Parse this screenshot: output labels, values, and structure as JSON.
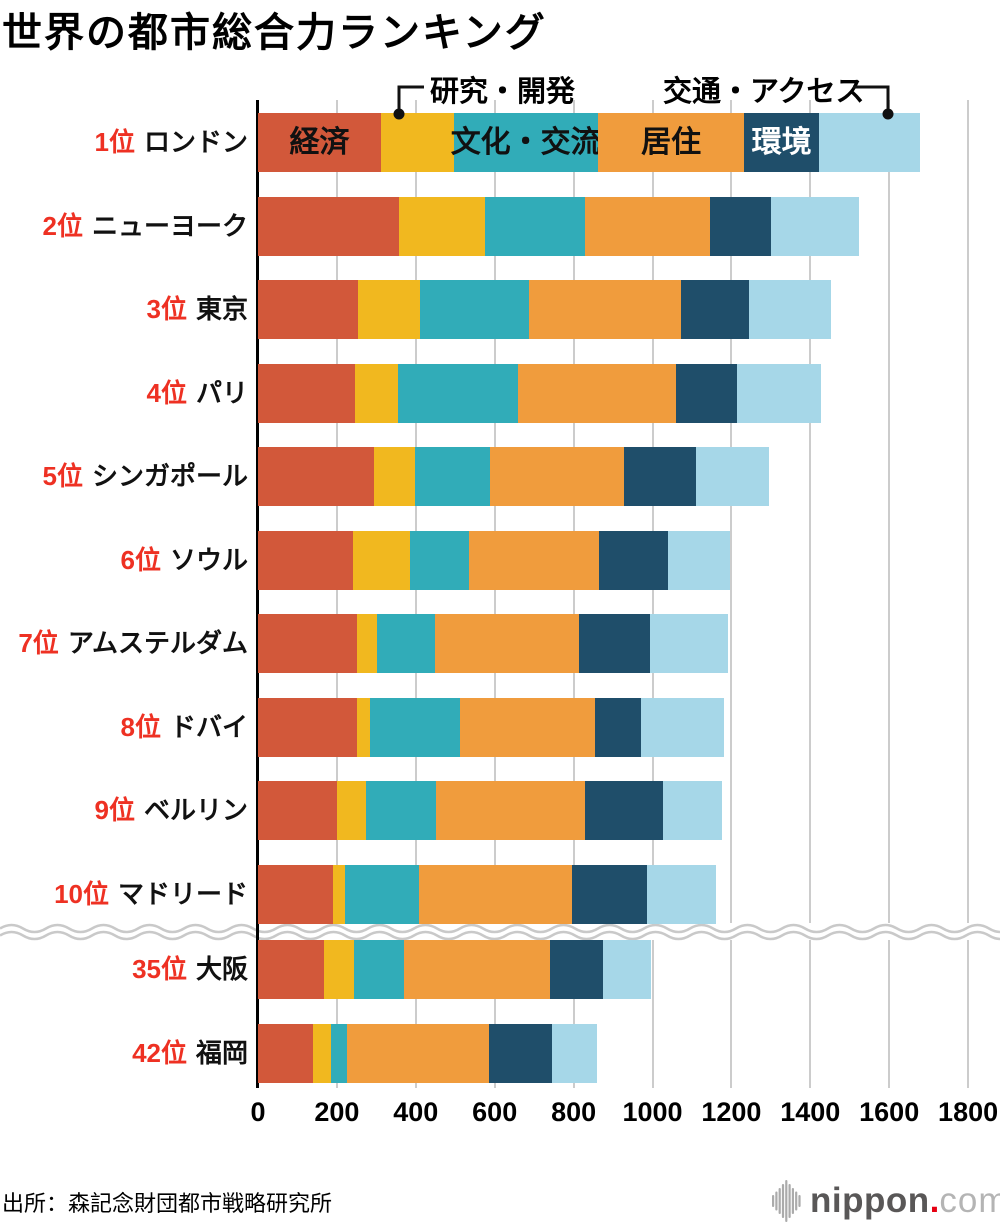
{
  "title": "世界の都市総合力ランキング",
  "source": "出所：森記念財団都市戦略研究所",
  "logo": {
    "icon": "soundwave-bars-icon",
    "name": "nippon",
    "dot": ".",
    "tld": "com",
    "dot_color": "#E60012"
  },
  "chart_data": {
    "type": "bar",
    "orientation": "horizontal-stacked",
    "title": "世界の都市総合力ランキング",
    "xlim": [
      0,
      1800
    ],
    "xticks": [
      0,
      200,
      400,
      600,
      800,
      1000,
      1200,
      1400,
      1600,
      1800
    ],
    "grid": true,
    "rank_color": "#EE3123",
    "categories": [
      {
        "key": "economy",
        "label": "経済",
        "color": "#D2583A",
        "label_placement": "inside-first-bar",
        "label_color": "#111111"
      },
      {
        "key": "rd",
        "label": "研究・開発",
        "color": "#F1B81F",
        "label_placement": "callout-above",
        "label_color": "#111111"
      },
      {
        "key": "culture",
        "label": "文化・交流",
        "color": "#31ACB8",
        "label_placement": "inside-first-bar",
        "label_color": "#111111"
      },
      {
        "key": "livability",
        "label": "居住",
        "color": "#F09C3D",
        "label_placement": "inside-first-bar",
        "label_color": "#111111"
      },
      {
        "key": "environment",
        "label": "環境",
        "color": "#1F4E6A",
        "label_placement": "inside-first-bar",
        "label_color": "#FFFFFF"
      },
      {
        "key": "access",
        "label": "交通・アクセス",
        "color": "#A6D7E8",
        "label_placement": "callout-above",
        "label_color": "#111111"
      }
    ],
    "rows": [
      {
        "id": "london",
        "rank": "1位",
        "city": "ロンドン",
        "values": [
          312,
          184,
          365,
          372,
          188,
          257
        ]
      },
      {
        "id": "new-york",
        "rank": "2位",
        "city": "ニューヨーク",
        "values": [
          358,
          217,
          253,
          319,
          153,
          223
        ]
      },
      {
        "id": "tokyo",
        "rank": "3位",
        "city": "東京",
        "values": [
          254,
          156,
          276,
          387,
          172,
          208
        ]
      },
      {
        "id": "paris",
        "rank": "4位",
        "city": "パリ",
        "values": [
          247,
          109,
          304,
          401,
          154,
          212
        ]
      },
      {
        "id": "singapore",
        "rank": "5位",
        "city": "シンガポール",
        "values": [
          293,
          104,
          190,
          341,
          182,
          186
        ]
      },
      {
        "id": "seoul",
        "rank": "6位",
        "city": "ソウル",
        "values": [
          240,
          146,
          148,
          330,
          175,
          157
        ]
      },
      {
        "id": "amsterdam",
        "rank": "7位",
        "city": "アムステルダム",
        "values": [
          250,
          52,
          147,
          366,
          178,
          198
        ]
      },
      {
        "id": "dubai",
        "rank": "8位",
        "city": "ドバイ",
        "values": [
          250,
          33,
          229,
          342,
          118,
          210
        ]
      },
      {
        "id": "berlin",
        "rank": "9位",
        "city": "ベルリン",
        "values": [
          200,
          73,
          179,
          378,
          196,
          151
        ]
      },
      {
        "id": "madrid",
        "rank": "10位",
        "city": "マドリード",
        "values": [
          191,
          31,
          186,
          389,
          188,
          175
        ]
      },
      {
        "id": "osaka",
        "rank": "35位",
        "city": "大阪",
        "values": [
          167,
          76,
          127,
          371,
          134,
          120
        ],
        "after_break": true
      },
      {
        "id": "fukuoka",
        "rank": "42位",
        "city": "福岡",
        "values": [
          140,
          44,
          42,
          359,
          160,
          115
        ],
        "after_break": true
      }
    ],
    "break": {
      "style": "double-wave",
      "between_ranks": [
        "10位",
        "35位"
      ]
    }
  }
}
